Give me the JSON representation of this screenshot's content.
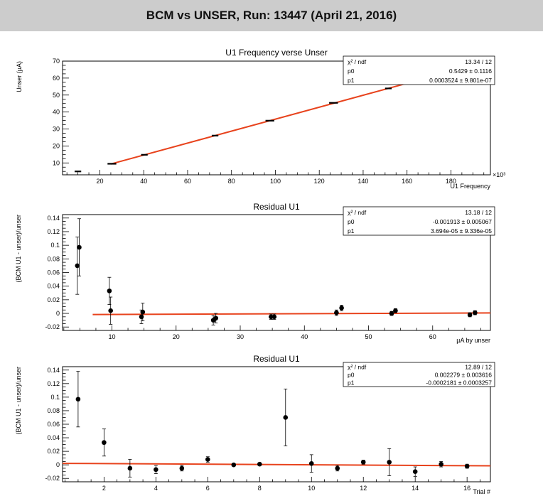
{
  "page_title": "BCM vs UNSER, Run: 13447 (April 21, 2016)",
  "colors": {
    "fit_line": "#e8431d",
    "points": "#000000",
    "banner": "#cccccc"
  },
  "chart_data": [
    {
      "type": "scatter",
      "title": "U1 Frequency verse Unser",
      "xlabel": "U1 Frequency",
      "ylabel": "Unser (µA)",
      "x_multiplier": "×10³",
      "xlim": [
        3,
        198
      ],
      "ylim": [
        3,
        70
      ],
      "xticks": [
        20,
        40,
        60,
        80,
        100,
        120,
        140,
        160,
        180
      ],
      "yticks": [
        10,
        20,
        30,
        40,
        50,
        60,
        70
      ],
      "grid": false,
      "stats_box": {
        "header_label": "χ² / ndf",
        "header_value": "13.34 / 12",
        "rows": [
          {
            "label": "p0",
            "value": "0.5429 ± 0.1116"
          },
          {
            "label": "p1",
            "value": "0.0003524 ± 9.801e-07"
          }
        ]
      },
      "fit": {
        "x": [
          25,
          167
        ],
        "y": [
          9.35,
          59.4
        ]
      },
      "points": [
        {
          "x": 10,
          "y": 5.0,
          "xerr": 1.5
        },
        {
          "x": 25.5,
          "y": 9.5,
          "xerr": 2
        },
        {
          "x": 40.3,
          "y": 14.8,
          "xerr": 1.5
        },
        {
          "x": 72.5,
          "y": 26.1,
          "xerr": 1.5
        },
        {
          "x": 97.5,
          "y": 34.9,
          "xerr": 2
        },
        {
          "x": 126.5,
          "y": 45.4,
          "xerr": 2
        },
        {
          "x": 151.5,
          "y": 53.9,
          "xerr": 1.5
        },
        {
          "x": 165.5,
          "y": 59.2,
          "xerr": 1.5
        }
      ]
    },
    {
      "type": "scatter",
      "title": "Residual U1",
      "xlabel": "µA by unser",
      "ylabel": "(BCM U1 - unser)/unser",
      "xlim": [
        2.3,
        69
      ],
      "ylim": [
        -0.025,
        0.145
      ],
      "xticks": [
        10,
        20,
        30,
        40,
        50,
        60
      ],
      "yticks": [
        -0.02,
        0,
        0.02,
        0.04,
        0.06,
        0.08,
        0.1,
        0.12,
        0.14
      ],
      "ytick_labels": [
        "-0.02",
        "0",
        "0.02",
        "0.04",
        "0.06",
        "0.08",
        "0.1",
        "0.12",
        "0.14"
      ],
      "grid": false,
      "stats_box": {
        "header_label": "χ² / ndf",
        "header_value": "13.18 / 12",
        "rows": [
          {
            "label": "p0",
            "value": "-0.001913 ± 0.005067"
          },
          {
            "label": "p1",
            "value": "3.694e-05 ± 9.336e-05"
          }
        ]
      },
      "fit": {
        "x": [
          7,
          69
        ],
        "y": [
          -0.0016,
          0.0007
        ]
      },
      "points": [
        {
          "x": 4.6,
          "y": 0.07,
          "yerr": 0.042
        },
        {
          "x": 4.9,
          "y": 0.097,
          "yerr": 0.042
        },
        {
          "x": 9.6,
          "y": 0.033,
          "yerr": 0.02
        },
        {
          "x": 9.8,
          "y": 0.004,
          "yerr": 0.02
        },
        {
          "x": 14.6,
          "y": -0.005,
          "yerr": 0.01
        },
        {
          "x": 14.8,
          "y": 0.002,
          "yerr": 0.013
        },
        {
          "x": 25.8,
          "y": -0.01,
          "yerr": 0.007
        },
        {
          "x": 26.2,
          "y": -0.007,
          "yerr": 0.007
        },
        {
          "x": 34.8,
          "y": -0.005,
          "yerr": 0.004
        },
        {
          "x": 35.3,
          "y": -0.005,
          "yerr": 0.004
        },
        {
          "x": 45.0,
          "y": 0.001,
          "yerr": 0.004
        },
        {
          "x": 45.8,
          "y": 0.008,
          "yerr": 0.004
        },
        {
          "x": 53.6,
          "y": 0.0,
          "yerr": 0.003
        },
        {
          "x": 54.2,
          "y": 0.004,
          "yerr": 0.003
        },
        {
          "x": 65.8,
          "y": -0.002,
          "yerr": 0.003
        },
        {
          "x": 66.6,
          "y": 0.001,
          "yerr": 0.003
        }
      ]
    },
    {
      "type": "scatter",
      "title": "Residual U1",
      "xlabel": "Trial #",
      "ylabel": "(BCM U1 - unser)/unser",
      "xlim": [
        0.4,
        16.9
      ],
      "ylim": [
        -0.025,
        0.145
      ],
      "xticks": [
        2,
        4,
        6,
        8,
        10,
        12,
        14,
        16
      ],
      "yticks": [
        -0.02,
        0,
        0.02,
        0.04,
        0.06,
        0.08,
        0.1,
        0.12,
        0.14
      ],
      "ytick_labels": [
        "-0.02",
        "0",
        "0.02",
        "0.04",
        "0.06",
        "0.08",
        "0.1",
        "0.12",
        "0.14"
      ],
      "grid": false,
      "stats_box": {
        "header_label": "χ² / ndf",
        "header_value": "12.89 / 12",
        "rows": [
          {
            "label": "p0",
            "value": "0.002279 ± 0.003616"
          },
          {
            "label": "p1",
            "value": "-0.0002181 ± 0.0003257"
          }
        ]
      },
      "fit": {
        "x": [
          0.4,
          16.9
        ],
        "y": [
          0.0022,
          -0.0014
        ]
      },
      "points": [
        {
          "x": 1,
          "y": 0.097,
          "yerr": 0.041
        },
        {
          "x": 2,
          "y": 0.033,
          "yerr": 0.02
        },
        {
          "x": 3,
          "y": -0.005,
          "yerr": 0.013
        },
        {
          "x": 4,
          "y": -0.007,
          "yerr": 0.006
        },
        {
          "x": 5,
          "y": -0.005,
          "yerr": 0.004
        },
        {
          "x": 6,
          "y": 0.008,
          "yerr": 0.004
        },
        {
          "x": 7,
          "y": 0.0,
          "yerr": 0.002
        },
        {
          "x": 8,
          "y": 0.001,
          "yerr": 0.002
        },
        {
          "x": 9,
          "y": 0.07,
          "yerr": 0.042
        },
        {
          "x": 10,
          "y": 0.002,
          "yerr": 0.013
        },
        {
          "x": 11,
          "y": -0.005,
          "yerr": 0.004
        },
        {
          "x": 12,
          "y": 0.004,
          "yerr": 0.003
        },
        {
          "x": 13,
          "y": 0.004,
          "yerr": 0.02
        },
        {
          "x": 14,
          "y": -0.01,
          "yerr": 0.007
        },
        {
          "x": 15,
          "y": 0.001,
          "yerr": 0.004
        },
        {
          "x": 16,
          "y": -0.002,
          "yerr": 0.003
        }
      ]
    }
  ]
}
